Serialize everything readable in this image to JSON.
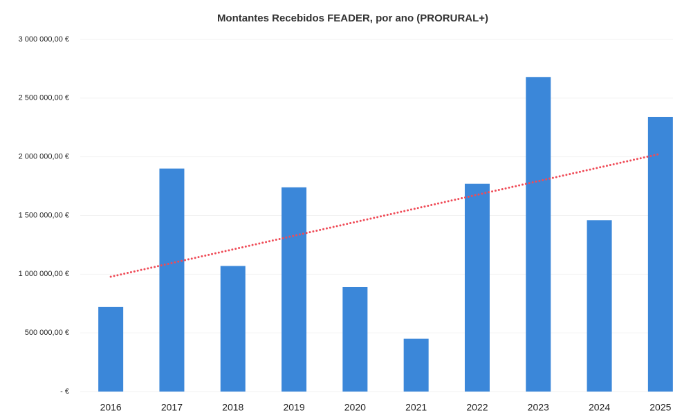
{
  "chart_data": {
    "type": "bar",
    "title": "Montantes Recebidos FEADER, por ano (PRORURAL+)",
    "categories": [
      "2016",
      "2017",
      "2018",
      "2019",
      "2020",
      "2021",
      "2022",
      "2023",
      "2024",
      "2025"
    ],
    "values": [
      720000,
      1900000,
      1070000,
      1740000,
      890000,
      450000,
      1770000,
      2680000,
      1460000,
      2340000
    ],
    "color": "#3b87d9",
    "trendline": "linear",
    "trendline_color": "#ef4b57",
    "ylim": [
      0,
      3000000
    ],
    "yticks": [
      {
        "value": 0,
        "label": "- €"
      },
      {
        "value": 500000,
        "label": "500 000,00 €"
      },
      {
        "value": 1000000,
        "label": "1 000 000,00 €"
      },
      {
        "value": 1500000,
        "label": "1 500 000,00 €"
      },
      {
        "value": 2000000,
        "label": "2 000 000,00 €"
      },
      {
        "value": 2500000,
        "label": "2 500 000,00 €"
      },
      {
        "value": 3000000,
        "label": "3 000 000,00 €"
      }
    ],
    "grid": true
  }
}
